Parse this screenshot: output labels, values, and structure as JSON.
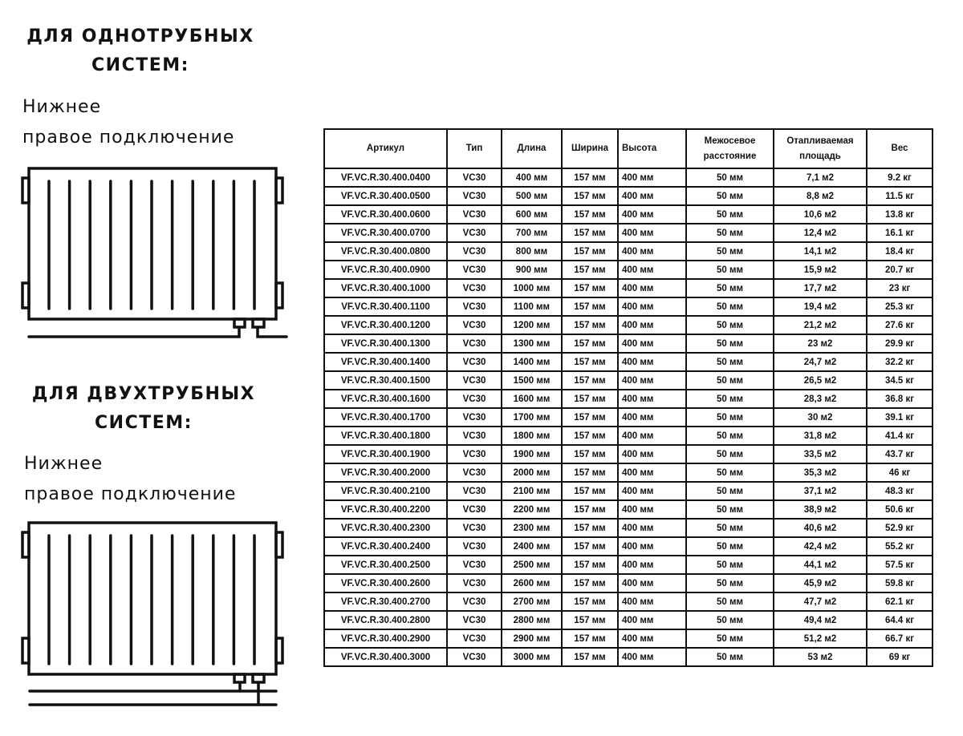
{
  "section1": {
    "title_line1": "ДЛЯ ОДНОТРУБНЫХ",
    "title_line2": "СИСТЕМ:",
    "connection_line1": "Нижнее",
    "connection_line2": "правое подключение"
  },
  "section2": {
    "title_line1": "ДЛЯ ДВУХТРУБНЫХ",
    "title_line2": "СИСТЕМ:",
    "connection_line1": "Нижнее",
    "connection_line2": "правое подключение"
  },
  "table": {
    "headers": [
      "Артикул",
      "Тип",
      "Длина",
      "Ширина",
      "Высота",
      "Межосевое расстояние",
      "Отапливаемая площадь",
      "Вес"
    ],
    "rows": [
      [
        "VF.VC.R.30.400.0400",
        "VC30",
        "400 мм",
        "157 мм",
        "400 мм",
        "50 мм",
        "7,1 м2",
        "9.2 кг"
      ],
      [
        "VF.VC.R.30.400.0500",
        "VC30",
        "500 мм",
        "157 мм",
        "400 мм",
        "50 мм",
        "8,8 м2",
        "11.5 кг"
      ],
      [
        "VF.VC.R.30.400.0600",
        "VC30",
        "600 мм",
        "157 мм",
        "400 мм",
        "50 мм",
        "10,6 м2",
        "13.8 кг"
      ],
      [
        "VF.VC.R.30.400.0700",
        "VC30",
        "700 мм",
        "157 мм",
        "400 мм",
        "50 мм",
        "12,4 м2",
        "16.1 кг"
      ],
      [
        "VF.VC.R.30.400.0800",
        "VC30",
        "800 мм",
        "157 мм",
        "400 мм",
        "50 мм",
        "14,1 м2",
        "18.4 кг"
      ],
      [
        "VF.VC.R.30.400.0900",
        "VC30",
        "900 мм",
        "157 мм",
        "400 мм",
        "50 мм",
        "15,9 м2",
        "20.7 кг"
      ],
      [
        "VF.VC.R.30.400.1000",
        "VC30",
        "1000 мм",
        "157 мм",
        "400 мм",
        "50 мм",
        "17,7 м2",
        "23 кг"
      ],
      [
        "VF.VC.R.30.400.1100",
        "VC30",
        "1100 мм",
        "157 мм",
        "400 мм",
        "50 мм",
        "19,4 м2",
        "25.3 кг"
      ],
      [
        "VF.VC.R.30.400.1200",
        "VC30",
        "1200 мм",
        "157 мм",
        "400 мм",
        "50 мм",
        "21,2 м2",
        "27.6 кг"
      ],
      [
        "VF.VC.R.30.400.1300",
        "VC30",
        "1300 мм",
        "157 мм",
        "400 мм",
        "50 мм",
        "23 м2",
        "29.9 кг"
      ],
      [
        "VF.VC.R.30.400.1400",
        "VC30",
        "1400 мм",
        "157 мм",
        "400 мм",
        "50 мм",
        "24,7 м2",
        "32.2 кг"
      ],
      [
        "VF.VC.R.30.400.1500",
        "VC30",
        "1500 мм",
        "157 мм",
        "400 мм",
        "50 мм",
        "26,5 м2",
        "34.5 кг"
      ],
      [
        "VF.VC.R.30.400.1600",
        "VC30",
        "1600 мм",
        "157 мм",
        "400 мм",
        "50 мм",
        "28,3 м2",
        "36.8 кг"
      ],
      [
        "VF.VC.R.30.400.1700",
        "VC30",
        "1700 мм",
        "157 мм",
        "400 мм",
        "50 мм",
        "30 м2",
        "39.1 кг"
      ],
      [
        "VF.VC.R.30.400.1800",
        "VC30",
        "1800 мм",
        "157 мм",
        "400 мм",
        "50 мм",
        "31,8 м2",
        "41.4 кг"
      ],
      [
        "VF.VC.R.30.400.1900",
        "VC30",
        "1900 мм",
        "157 мм",
        "400 мм",
        "50 мм",
        "33,5 м2",
        "43.7 кг"
      ],
      [
        "VF.VC.R.30.400.2000",
        "VC30",
        "2000 мм",
        "157 мм",
        "400 мм",
        "50 мм",
        "35,3 м2",
        "46 кг"
      ],
      [
        "VF.VC.R.30.400.2100",
        "VC30",
        "2100 мм",
        "157 мм",
        "400 мм",
        "50 мм",
        "37,1 м2",
        "48.3 кг"
      ],
      [
        "VF.VC.R.30.400.2200",
        "VC30",
        "2200 мм",
        "157 мм",
        "400 мм",
        "50 мм",
        "38,9 м2",
        "50.6 кг"
      ],
      [
        "VF.VC.R.30.400.2300",
        "VC30",
        "2300 мм",
        "157 мм",
        "400 мм",
        "50 мм",
        "40,6 м2",
        "52.9 кг"
      ],
      [
        "VF.VC.R.30.400.2400",
        "VC30",
        "2400 мм",
        "157 мм",
        "400 мм",
        "50 мм",
        "42,4 м2",
        "55.2 кг"
      ],
      [
        "VF.VC.R.30.400.2500",
        "VC30",
        "2500 мм",
        "157 мм",
        "400 мм",
        "50 мм",
        "44,1 м2",
        "57.5 кг"
      ],
      [
        "VF.VC.R.30.400.2600",
        "VC30",
        "2600 мм",
        "157 мм",
        "400 мм",
        "50 мм",
        "45,9 м2",
        "59.8 кг"
      ],
      [
        "VF.VC.R.30.400.2700",
        "VC30",
        "2700 мм",
        "157 мм",
        "400 мм",
        "50 мм",
        "47,7 м2",
        "62.1 кг"
      ],
      [
        "VF.VC.R.30.400.2800",
        "VC30",
        "2800 мм",
        "157 мм",
        "400 мм",
        "50 мм",
        "49,4 м2",
        "64.4 кг"
      ],
      [
        "VF.VC.R.30.400.2900",
        "VC30",
        "2900 мм",
        "157 мм",
        "400 мм",
        "50 мм",
        "51,2 м2",
        "66.7 кг"
      ],
      [
        "VF.VC.R.30.400.3000",
        "VC30",
        "3000 мм",
        "157 мм",
        "400 мм",
        "50 мм",
        "53 м2",
        "69 кг"
      ]
    ]
  }
}
